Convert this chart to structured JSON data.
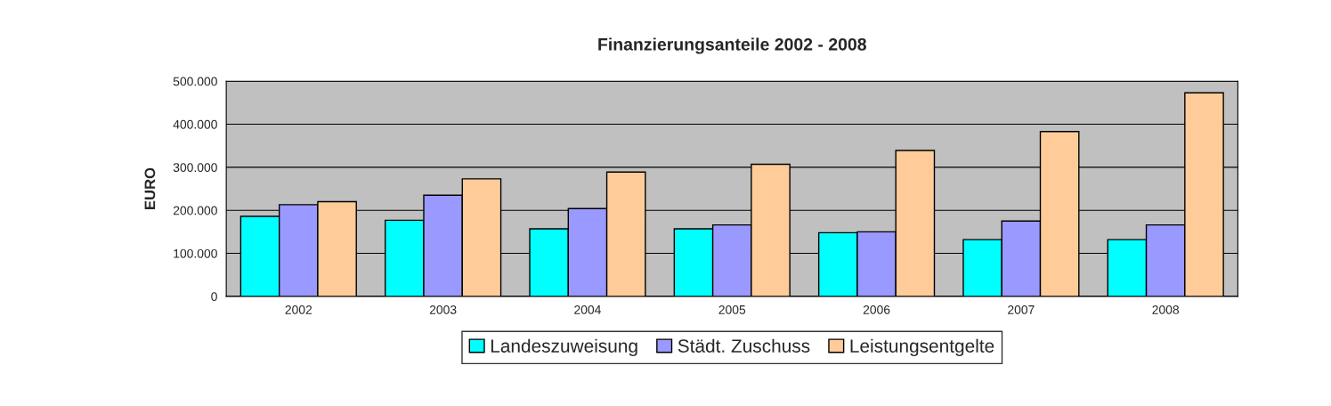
{
  "chart_data": {
    "type": "bar",
    "title": "Finanzierungsanteile 2002 - 2008",
    "ylabel": "EURO",
    "categories": [
      "2002",
      "2003",
      "2004",
      "2005",
      "2006",
      "2007",
      "2008"
    ],
    "series": [
      {
        "name": "Landeszuweisung",
        "color": "#00ffff",
        "values": [
          186000,
          177000,
          157000,
          157000,
          148000,
          132000,
          132000
        ]
      },
      {
        "name": "Städt. Zuschuss",
        "color": "#9999ff",
        "values": [
          213000,
          235000,
          204000,
          166000,
          150000,
          175000,
          166000
        ]
      },
      {
        "name": "Leistungsentgelte",
        "color": "#ffcc99",
        "values": [
          220000,
          273000,
          289000,
          307000,
          339000,
          383000,
          473000
        ]
      }
    ],
    "ylim": [
      0,
      500000
    ],
    "yticks": [
      {
        "value": 0,
        "label": "0"
      },
      {
        "value": 100000,
        "label": "100.000"
      },
      {
        "value": 200000,
        "label": "200.000"
      },
      {
        "value": 300000,
        "label": "300.000"
      },
      {
        "value": 400000,
        "label": "400.000"
      },
      {
        "value": 500000,
        "label": "500.000"
      }
    ],
    "grid": "y",
    "legend": "bottom"
  }
}
